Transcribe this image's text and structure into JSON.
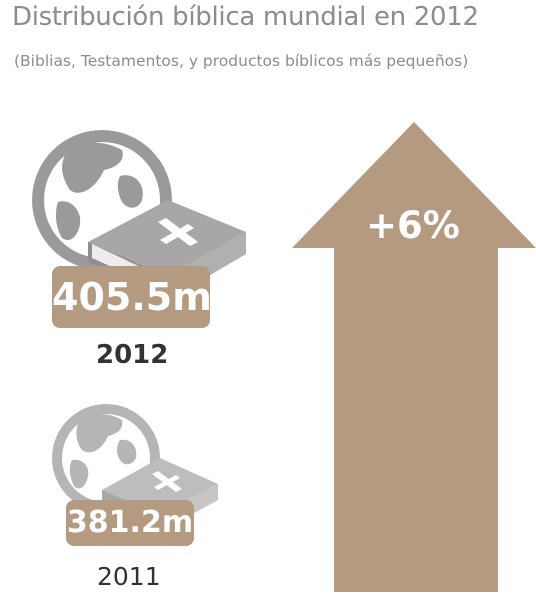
{
  "header": {
    "title": "Distribución bíblica mundial en 2012",
    "subtitle": "(Biblias, Testamentos, y productos bíblicos más pequeños)"
  },
  "items": [
    {
      "value": "405.5m",
      "year": "2012"
    },
    {
      "value": "381.2m",
      "year": "2011"
    }
  ],
  "change": {
    "label": "+6%"
  },
  "colors": {
    "accent": "#b39a80",
    "icon_gray": "#999999",
    "text_gray": "#8c8c8c",
    "text_dark": "#333333"
  }
}
